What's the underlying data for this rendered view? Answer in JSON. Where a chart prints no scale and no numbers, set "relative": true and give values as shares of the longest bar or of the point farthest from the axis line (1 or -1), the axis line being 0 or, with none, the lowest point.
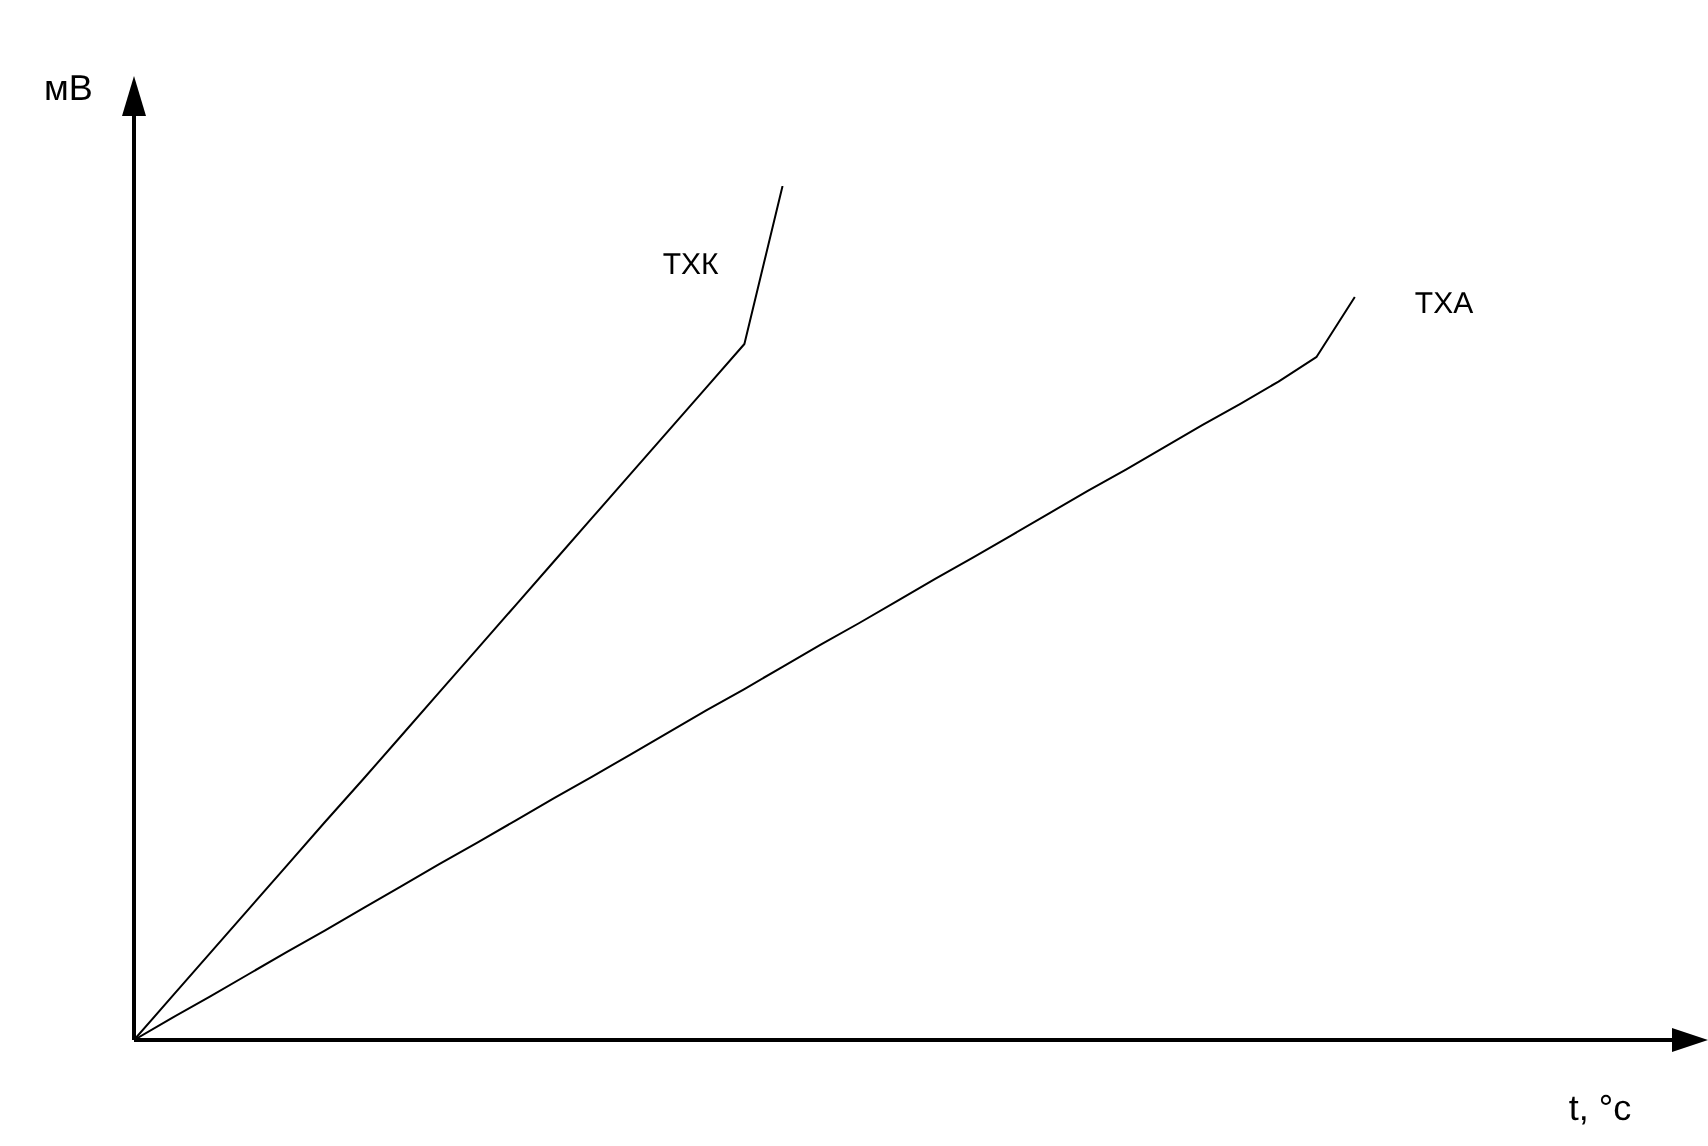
{
  "chart_data": {
    "type": "line",
    "relative": true,
    "xlabel": "t, °c",
    "ylabel": "мВ",
    "tick_labels": false,
    "categories": [
      null,
      null,
      null,
      null,
      null,
      null,
      null,
      null,
      null,
      null,
      null,
      null,
      null,
      null,
      null,
      null,
      null,
      null,
      null,
      null,
      null,
      null,
      null,
      null,
      null,
      null,
      null,
      null,
      null,
      null,
      null,
      null,
      null,
      null,
      null,
      null,
      null,
      null,
      null,
      null,
      null
    ],
    "series": [
      {
        "name": "ТХК",
        "color": "#000000",
        "values": [
          0,
          0.051,
          0.102,
          0.153,
          0.204,
          0.255,
          0.305,
          0.356,
          0.407,
          0.458,
          0.509,
          0.56,
          0.611,
          0.662,
          0.713,
          0.764,
          0.815,
          1.0,
          null,
          null,
          null,
          null,
          null,
          null,
          null,
          null,
          null,
          null,
          null,
          null,
          null,
          null,
          null,
          null,
          null,
          null,
          null,
          null,
          null,
          null,
          null
        ]
      },
      {
        "name": "ТХА",
        "color": "#000000",
        "values": [
          0,
          0.026,
          0.051,
          0.077,
          0.103,
          0.128,
          0.154,
          0.18,
          0.206,
          0.231,
          0.257,
          0.283,
          0.308,
          0.334,
          0.36,
          0.386,
          0.411,
          0.437,
          0.463,
          0.488,
          0.514,
          0.54,
          0.565,
          0.591,
          0.617,
          0.643,
          0.668,
          0.694,
          0.72,
          0.745,
          0.771,
          0.8,
          0.87,
          null,
          null,
          null,
          null,
          null,
          null,
          null,
          null
        ]
      }
    ]
  }
}
